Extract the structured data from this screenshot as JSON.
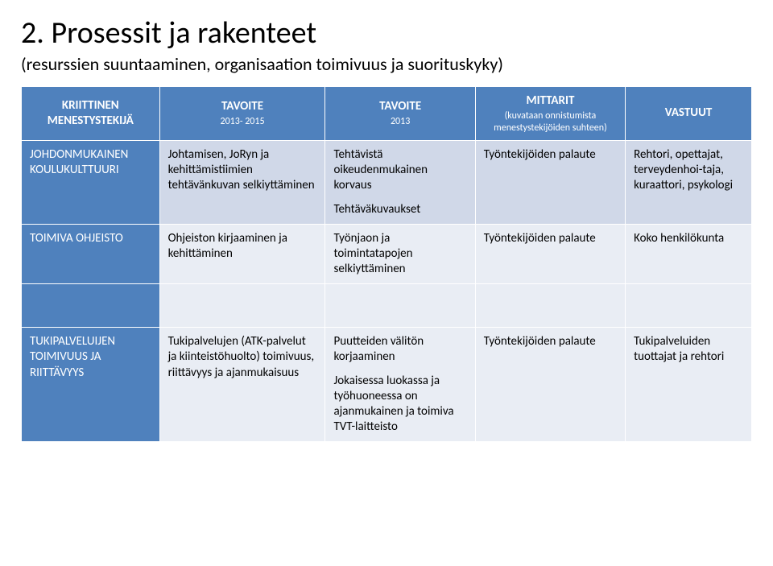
{
  "title": "2. Prosessit ja rakenteet",
  "subtitle": "(resurssien suuntaaminen, organisaation toimivuus ja suorituskyky)",
  "headers": {
    "col1": {
      "main": "KRIITTINEN MENESTYSTEKIJÄ",
      "sub": ""
    },
    "col2": {
      "main": "TAVOITE",
      "sub": "2013- 2015"
    },
    "col3": {
      "main": "TAVOITE",
      "sub": "2013"
    },
    "col4": {
      "main": "MITTARIT",
      "sub": "(kuvataan onnistumista menestystekijöiden suhteen)"
    },
    "col5": {
      "main": "VASTUUT",
      "sub": ""
    }
  },
  "rows": [
    {
      "label": "JOHDONMUKAINEN KOULUKULTTUURI",
      "c2": "Johtamisen, JoRyn ja kehittämistiimien tehtävänkuvan selkiyttäminen",
      "c3a": "Tehtävistä oikeudenmukainen korvaus",
      "c3b": "Tehtäväkuvaukset",
      "c4": "Työntekijöiden palaute",
      "c5": "Rehtori, opettajat, terveydenhoi-taja, kuraattori, psykologi"
    },
    {
      "label": "TOIMIVA OHJEISTO",
      "c2": "Ohjeiston kirjaaminen ja kehittäminen",
      "c3a": "Työnjaon ja toimintatapojen selkiyttäminen",
      "c3b": "",
      "c4": "Työntekijöiden palaute",
      "c5": "Koko henkilökunta"
    },
    {
      "label": "TUKIPALVELUIJEN TOIMIVUUS JA RIITTÄVYYS",
      "c2": "Tukipalvelujen (ATK-palvelut ja kiinteistöhuolto) toimivuus, riittävyys ja ajanmukaisuus",
      "c3a": "Puutteiden välitön korjaaminen",
      "c3b": "Jokaisessa luokassa ja työhuoneessa on ajanmukainen ja toimiva TVT-laitteisto",
      "c4": "Työntekijöiden palaute",
      "c5": "Tukipalveluiden tuottajat ja rehtori"
    }
  ],
  "style": {
    "header_bg": "#4f81bd",
    "row_odd_bg": "#d0d8e8",
    "row_even_bg": "#e9edf4",
    "border_color": "#ffffff",
    "title_fontsize": 38,
    "subtitle_fontsize": 22,
    "cell_fontsize": 15,
    "header_sub_fontsize": 12,
    "font_family": "Calibri"
  }
}
